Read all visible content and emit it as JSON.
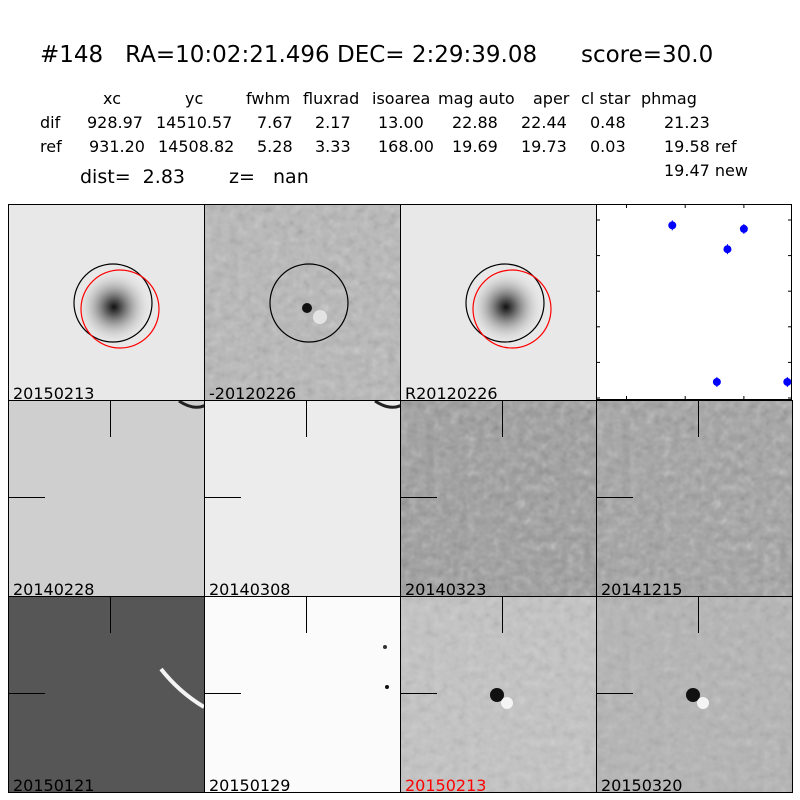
{
  "header": {
    "title": "#148   RA=10:02:21.496 DEC= 2:29:39.08      score=30.0",
    "columns": [
      "xc",
      "yc",
      "fwhm",
      "fluxrad",
      "isoarea",
      "mag auto",
      "aper",
      "cl star",
      "phmag"
    ],
    "rows": [
      {
        "label": "dif",
        "values": [
          "928.97",
          "14510.57",
          "7.67",
          "2.17",
          "13.00",
          "22.88",
          "22.44",
          "0.48",
          "21.23"
        ]
      },
      {
        "label": "ref",
        "values": [
          "931.20",
          "14508.82",
          "5.28",
          "3.33",
          "168.00",
          "19.69",
          "19.73",
          "0.03",
          "19.58 ref"
        ]
      }
    ],
    "extra_phmag": "19.47 new",
    "dist": "dist=  2.83",
    "z": "z=   nan"
  },
  "panels": [
    {
      "label": "20150213",
      "style": "blob",
      "tone": "#e8e8e8",
      "circles": true,
      "label_color": "#000000"
    },
    {
      "label": "-20120226",
      "style": "noise-mid",
      "tone": "#b8b8b8",
      "circles": "black",
      "label_color": "#000000"
    },
    {
      "label": "R20120226",
      "style": "blob",
      "tone": "#e8e8e8",
      "circles": true,
      "label_color": "#000000"
    },
    {
      "label": "20140228",
      "style": "flat",
      "tone": "#cfcfcf",
      "label_color": "#000000"
    },
    {
      "label": "20140308",
      "style": "flat",
      "tone": "#ececec",
      "label_color": "#000000"
    },
    {
      "label": "20140323",
      "style": "noise",
      "tone": "#9a9a9a",
      "label_color": "#000000"
    },
    {
      "label": "20141215",
      "style": "noise",
      "tone": "#a0a0a0",
      "label_color": "#000000"
    },
    {
      "label": "20150121",
      "style": "flat",
      "tone": "#565656",
      "label_color": "#000000"
    },
    {
      "label": "20150129",
      "style": "flat",
      "tone": "#fbfbfb",
      "label_color": "#000000"
    },
    {
      "label": "20150213",
      "style": "noise-light",
      "tone": "#c4c4c4",
      "label_color": "#ff0000"
    },
    {
      "label": "20150320",
      "style": "noise-light",
      "tone": "#b4b4b4",
      "label_color": "#000000"
    }
  ],
  "chart_data": {
    "type": "scatter",
    "x": [
      -61,
      -14,
      0,
      -23,
      37
    ],
    "y": [
      21.15,
      21.82,
      21.25,
      25.55,
      25.55
    ],
    "xlim": [
      -126,
      41
    ],
    "ylim": [
      26,
      21
    ],
    "y_inverted": true,
    "xticks": [
      "−100",
      "−50",
      "0"
    ],
    "xtick_values": [
      -100,
      -50,
      0
    ],
    "yticks": [
      "21",
      "22",
      "23",
      "24",
      "25",
      "26"
    ],
    "ytick_values": [
      21,
      22,
      23,
      24,
      25,
      26
    ],
    "marker_color": "#0000ff",
    "errorbars": true,
    "grid": false
  }
}
